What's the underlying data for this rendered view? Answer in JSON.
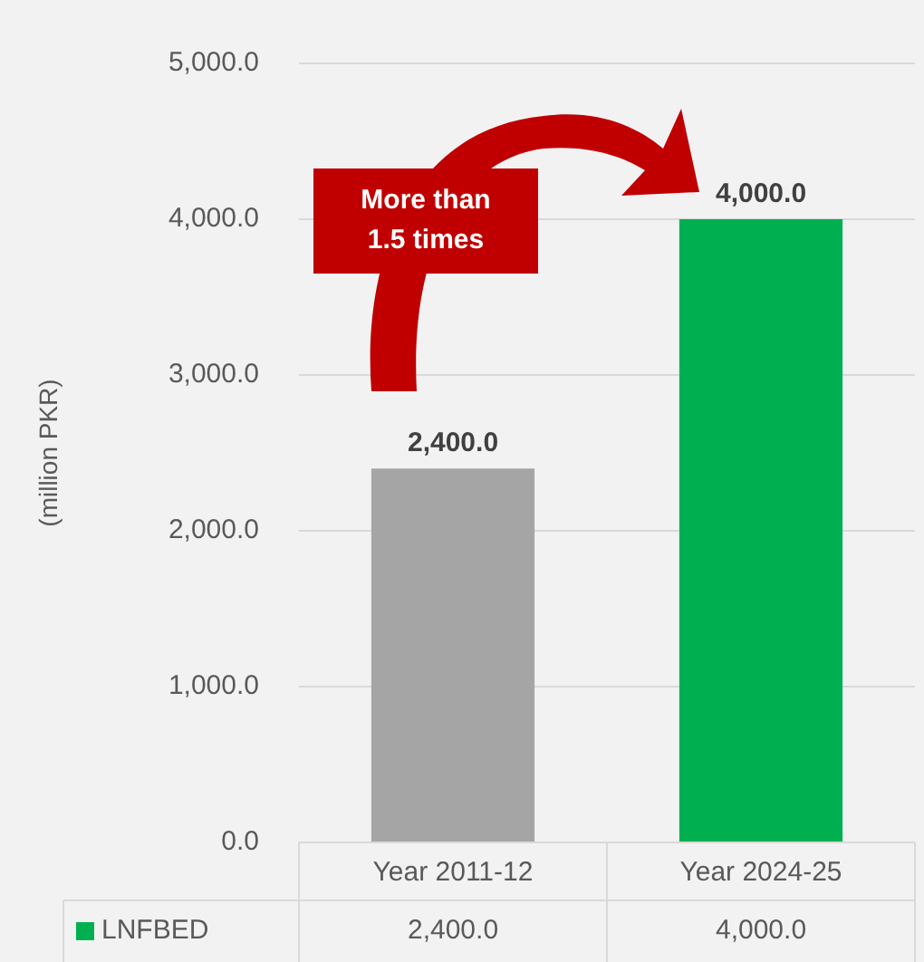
{
  "chart_data": {
    "type": "bar",
    "ylabel": "(million PKR)",
    "categories": [
      "Year 2011-12",
      "Year 2024-25"
    ],
    "series": [
      {
        "name": "LNFBED",
        "color": "#00b050",
        "colors": [
          "#a5a5a5",
          "#00b050"
        ],
        "values": [
          2400,
          4000
        ],
        "value_labels": [
          "2,400.0",
          "4,000.0"
        ]
      }
    ],
    "ylim": [
      0,
      5000
    ],
    "yticks": [
      {
        "value": 0,
        "label": "0.0"
      },
      {
        "value": 1000,
        "label": "1,000.0"
      },
      {
        "value": 2000,
        "label": "2,000.0"
      },
      {
        "value": 3000,
        "label": "3,000.0"
      },
      {
        "value": 4000,
        "label": "4,000.0"
      },
      {
        "value": 5000,
        "label": "5,000.0"
      }
    ],
    "grid": "y",
    "legend": "bottom",
    "annotations": [
      "More than 1.5 times"
    ]
  }
}
